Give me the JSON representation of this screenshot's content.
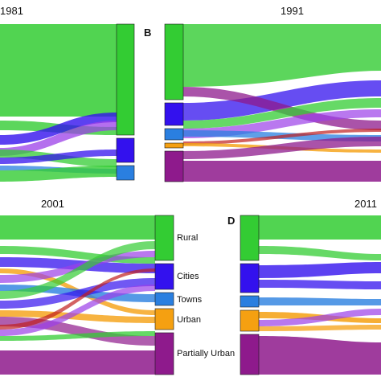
{
  "panels": [
    {
      "id": "A",
      "year": "1981",
      "letter": ""
    },
    {
      "id": "B",
      "year": "1991",
      "letter": "B"
    },
    {
      "id": "C",
      "year": "2001",
      "letter": ""
    },
    {
      "id": "D",
      "year": "2011",
      "letter": "D"
    }
  ],
  "categories": [
    {
      "key": "rural",
      "label": "Rural",
      "color": "#33cc33"
    },
    {
      "key": "cities",
      "label": "Cities",
      "color": "#3311ee"
    },
    {
      "key": "towns",
      "label": "Towns",
      "color": "#2a7fe0"
    },
    {
      "key": "urban",
      "label": "Urban",
      "color": "#f5a011"
    },
    {
      "key": "partially_urban",
      "label": "Partially Urban",
      "color": "#8e1a8c"
    }
  ],
  "extra_flow_colors": [
    "#9b3fe8",
    "#c02020"
  ]
}
